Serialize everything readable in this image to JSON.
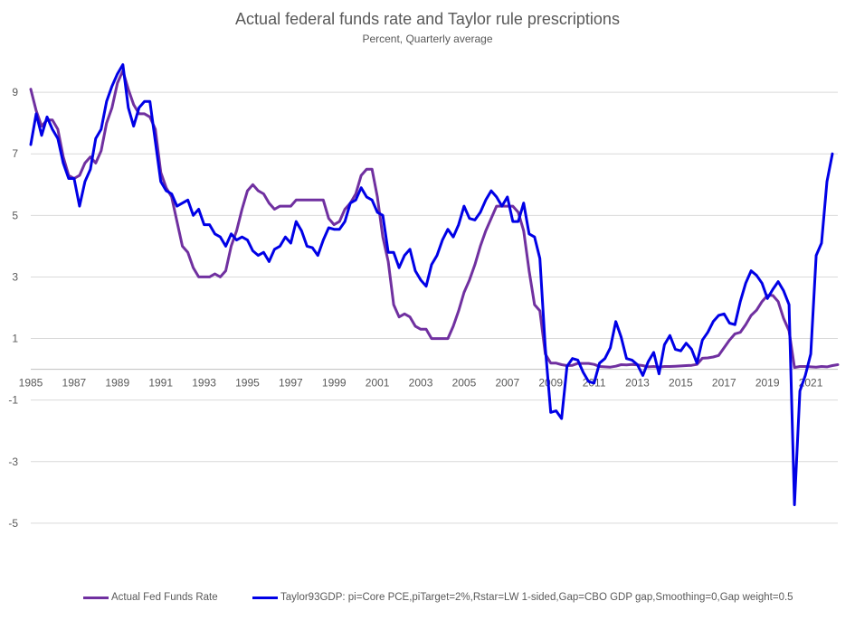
{
  "chart_data": {
    "type": "line",
    "title": "Actual federal funds rate and Taylor rule prescriptions",
    "subtitle": "Percent, Quarterly average",
    "xlabel": "",
    "ylabel": "",
    "xlim": [
      1985,
      2022.25
    ],
    "ylim": [
      -7,
      11
    ],
    "x_ticks": [
      "1985",
      "1987",
      "1989",
      "1991",
      "1993",
      "1995",
      "1997",
      "1999",
      "2001",
      "2003",
      "2005",
      "2007",
      "2009",
      "2011",
      "2013",
      "2015",
      "2017",
      "2019",
      "2021"
    ],
    "y_ticks": [
      "-5",
      "-3",
      "-1",
      "1",
      "3",
      "5",
      "7",
      "9"
    ],
    "grid": "horizontal",
    "legend_position": "bottom",
    "colors": {
      "actual": "#7030a0",
      "taylor": "#0000e6",
      "grid": "#d9d9d9"
    },
    "series": [
      {
        "name": "Actual Fed Funds Rate",
        "key": "actual",
        "points": [
          [
            1985.0,
            9.1
          ],
          [
            1985.25,
            8.4
          ],
          [
            1985.5,
            7.9
          ],
          [
            1985.75,
            8.1
          ],
          [
            1986.0,
            8.1
          ],
          [
            1986.25,
            7.8
          ],
          [
            1986.5,
            6.9
          ],
          [
            1986.75,
            6.3
          ],
          [
            1987.0,
            6.2
          ],
          [
            1987.25,
            6.3
          ],
          [
            1987.5,
            6.7
          ],
          [
            1987.75,
            6.9
          ],
          [
            1988.0,
            6.7
          ],
          [
            1988.25,
            7.1
          ],
          [
            1988.5,
            8.0
          ],
          [
            1988.75,
            8.5
          ],
          [
            1989.0,
            9.3
          ],
          [
            1989.25,
            9.7
          ],
          [
            1989.5,
            9.1
          ],
          [
            1989.75,
            8.6
          ],
          [
            1990.0,
            8.3
          ],
          [
            1990.25,
            8.3
          ],
          [
            1990.5,
            8.2
          ],
          [
            1990.75,
            7.8
          ],
          [
            1991.0,
            6.4
          ],
          [
            1991.25,
            5.9
          ],
          [
            1991.5,
            5.6
          ],
          [
            1991.75,
            4.8
          ],
          [
            1992.0,
            4.0
          ],
          [
            1992.25,
            3.8
          ],
          [
            1992.5,
            3.3
          ],
          [
            1992.75,
            3.0
          ],
          [
            1993.0,
            3.0
          ],
          [
            1993.25,
            3.0
          ],
          [
            1993.5,
            3.1
          ],
          [
            1993.75,
            3.0
          ],
          [
            1994.0,
            3.2
          ],
          [
            1994.25,
            4.0
          ],
          [
            1994.5,
            4.5
          ],
          [
            1994.75,
            5.2
          ],
          [
            1995.0,
            5.8
          ],
          [
            1995.25,
            6.0
          ],
          [
            1995.5,
            5.8
          ],
          [
            1995.75,
            5.7
          ],
          [
            1996.0,
            5.4
          ],
          [
            1996.25,
            5.2
          ],
          [
            1996.5,
            5.3
          ],
          [
            1996.75,
            5.3
          ],
          [
            1997.0,
            5.3
          ],
          [
            1997.25,
            5.5
          ],
          [
            1997.5,
            5.5
          ],
          [
            1997.75,
            5.5
          ],
          [
            1998.0,
            5.5
          ],
          [
            1998.25,
            5.5
          ],
          [
            1998.5,
            5.5
          ],
          [
            1998.75,
            4.9
          ],
          [
            1999.0,
            4.7
          ],
          [
            1999.25,
            4.8
          ],
          [
            1999.5,
            5.2
          ],
          [
            1999.75,
            5.4
          ],
          [
            2000.0,
            5.7
          ],
          [
            2000.25,
            6.3
          ],
          [
            2000.5,
            6.5
          ],
          [
            2000.75,
            6.5
          ],
          [
            2001.0,
            5.6
          ],
          [
            2001.25,
            4.3
          ],
          [
            2001.5,
            3.5
          ],
          [
            2001.75,
            2.1
          ],
          [
            2002.0,
            1.7
          ],
          [
            2002.25,
            1.8
          ],
          [
            2002.5,
            1.7
          ],
          [
            2002.75,
            1.4
          ],
          [
            2003.0,
            1.3
          ],
          [
            2003.25,
            1.3
          ],
          [
            2003.5,
            1.0
          ],
          [
            2003.75,
            1.0
          ],
          [
            2004.0,
            1.0
          ],
          [
            2004.25,
            1.0
          ],
          [
            2004.5,
            1.4
          ],
          [
            2004.75,
            1.9
          ],
          [
            2005.0,
            2.5
          ],
          [
            2005.25,
            2.9
          ],
          [
            2005.5,
            3.4
          ],
          [
            2005.75,
            4.0
          ],
          [
            2006.0,
            4.5
          ],
          [
            2006.25,
            4.9
          ],
          [
            2006.5,
            5.3
          ],
          [
            2006.75,
            5.3
          ],
          [
            2007.0,
            5.3
          ],
          [
            2007.25,
            5.3
          ],
          [
            2007.5,
            5.1
          ],
          [
            2007.75,
            4.5
          ],
          [
            2008.0,
            3.2
          ],
          [
            2008.25,
            2.1
          ],
          [
            2008.5,
            1.9
          ],
          [
            2008.75,
            0.5
          ],
          [
            2009.0,
            0.2
          ],
          [
            2009.25,
            0.2
          ],
          [
            2009.5,
            0.15
          ],
          [
            2009.75,
            0.12
          ],
          [
            2010.0,
            0.13
          ],
          [
            2010.25,
            0.19
          ],
          [
            2010.5,
            0.19
          ],
          [
            2010.75,
            0.19
          ],
          [
            2011.0,
            0.16
          ],
          [
            2011.25,
            0.09
          ],
          [
            2011.5,
            0.08
          ],
          [
            2011.75,
            0.07
          ],
          [
            2012.0,
            0.1
          ],
          [
            2012.25,
            0.15
          ],
          [
            2012.5,
            0.14
          ],
          [
            2012.75,
            0.16
          ],
          [
            2013.0,
            0.14
          ],
          [
            2013.25,
            0.12
          ],
          [
            2013.5,
            0.08
          ],
          [
            2013.75,
            0.09
          ],
          [
            2014.0,
            0.07
          ],
          [
            2014.25,
            0.09
          ],
          [
            2014.5,
            0.09
          ],
          [
            2014.75,
            0.1
          ],
          [
            2015.0,
            0.11
          ],
          [
            2015.25,
            0.12
          ],
          [
            2015.5,
            0.13
          ],
          [
            2015.75,
            0.16
          ],
          [
            2016.0,
            0.36
          ],
          [
            2016.25,
            0.37
          ],
          [
            2016.5,
            0.4
          ],
          [
            2016.75,
            0.45
          ],
          [
            2017.0,
            0.7
          ],
          [
            2017.25,
            0.95
          ],
          [
            2017.5,
            1.15
          ],
          [
            2017.75,
            1.2
          ],
          [
            2018.0,
            1.45
          ],
          [
            2018.25,
            1.75
          ],
          [
            2018.5,
            1.92
          ],
          [
            2018.75,
            2.2
          ],
          [
            2019.0,
            2.4
          ],
          [
            2019.25,
            2.4
          ],
          [
            2019.5,
            2.2
          ],
          [
            2019.75,
            1.65
          ],
          [
            2020.0,
            1.25
          ],
          [
            2020.25,
            0.06
          ],
          [
            2020.5,
            0.09
          ],
          [
            2020.75,
            0.09
          ],
          [
            2021.0,
            0.08
          ],
          [
            2021.25,
            0.07
          ],
          [
            2021.5,
            0.09
          ],
          [
            2021.75,
            0.08
          ],
          [
            2022.0,
            0.12
          ],
          [
            2022.25,
            0.15
          ]
        ]
      },
      {
        "name": "Taylor93GDP:  pi=Core PCE,piTarget=2%,Rstar=LW 1-sided,Gap=CBO GDP gap,Smoothing=0,Gap weight=0.5",
        "key": "taylor",
        "points": [
          [
            1985.0,
            7.3
          ],
          [
            1985.25,
            8.3
          ],
          [
            1985.5,
            7.6
          ],
          [
            1985.75,
            8.2
          ],
          [
            1986.0,
            7.8
          ],
          [
            1986.25,
            7.5
          ],
          [
            1986.5,
            6.7
          ],
          [
            1986.75,
            6.2
          ],
          [
            1987.0,
            6.2
          ],
          [
            1987.25,
            5.3
          ],
          [
            1987.5,
            6.1
          ],
          [
            1987.75,
            6.5
          ],
          [
            1988.0,
            7.5
          ],
          [
            1988.25,
            7.8
          ],
          [
            1988.5,
            8.7
          ],
          [
            1988.75,
            9.2
          ],
          [
            1989.0,
            9.6
          ],
          [
            1989.25,
            9.9
          ],
          [
            1989.5,
            8.5
          ],
          [
            1989.75,
            7.9
          ],
          [
            1990.0,
            8.5
          ],
          [
            1990.25,
            8.7
          ],
          [
            1990.5,
            8.7
          ],
          [
            1990.75,
            7.4
          ],
          [
            1991.0,
            6.1
          ],
          [
            1991.25,
            5.8
          ],
          [
            1991.5,
            5.7
          ],
          [
            1991.75,
            5.3
          ],
          [
            1992.0,
            5.4
          ],
          [
            1992.25,
            5.5
          ],
          [
            1992.5,
            5.0
          ],
          [
            1992.75,
            5.2
          ],
          [
            1993.0,
            4.7
          ],
          [
            1993.25,
            4.7
          ],
          [
            1993.5,
            4.4
          ],
          [
            1993.75,
            4.3
          ],
          [
            1994.0,
            4.0
          ],
          [
            1994.25,
            4.4
          ],
          [
            1994.5,
            4.2
          ],
          [
            1994.75,
            4.3
          ],
          [
            1995.0,
            4.2
          ],
          [
            1995.25,
            3.85
          ],
          [
            1995.5,
            3.7
          ],
          [
            1995.75,
            3.8
          ],
          [
            1996.0,
            3.5
          ],
          [
            1996.25,
            3.9
          ],
          [
            1996.5,
            4.0
          ],
          [
            1996.75,
            4.3
          ],
          [
            1997.0,
            4.1
          ],
          [
            1997.25,
            4.8
          ],
          [
            1997.5,
            4.5
          ],
          [
            1997.75,
            4.0
          ],
          [
            1998.0,
            3.95
          ],
          [
            1998.25,
            3.7
          ],
          [
            1998.5,
            4.2
          ],
          [
            1998.75,
            4.6
          ],
          [
            1999.0,
            4.55
          ],
          [
            1999.25,
            4.55
          ],
          [
            1999.5,
            4.8
          ],
          [
            1999.75,
            5.4
          ],
          [
            2000.0,
            5.5
          ],
          [
            2000.25,
            5.9
          ],
          [
            2000.5,
            5.6
          ],
          [
            2000.75,
            5.5
          ],
          [
            2001.0,
            5.1
          ],
          [
            2001.25,
            5.0
          ],
          [
            2001.5,
            3.8
          ],
          [
            2001.75,
            3.8
          ],
          [
            2002.0,
            3.3
          ],
          [
            2002.25,
            3.7
          ],
          [
            2002.5,
            3.9
          ],
          [
            2002.75,
            3.2
          ],
          [
            2003.0,
            2.9
          ],
          [
            2003.25,
            2.7
          ],
          [
            2003.5,
            3.4
          ],
          [
            2003.75,
            3.7
          ],
          [
            2004.0,
            4.2
          ],
          [
            2004.25,
            4.55
          ],
          [
            2004.5,
            4.3
          ],
          [
            2004.75,
            4.7
          ],
          [
            2005.0,
            5.3
          ],
          [
            2005.25,
            4.9
          ],
          [
            2005.5,
            4.85
          ],
          [
            2005.75,
            5.1
          ],
          [
            2006.0,
            5.5
          ],
          [
            2006.25,
            5.8
          ],
          [
            2006.5,
            5.6
          ],
          [
            2006.75,
            5.3
          ],
          [
            2007.0,
            5.6
          ],
          [
            2007.25,
            4.8
          ],
          [
            2007.5,
            4.8
          ],
          [
            2007.75,
            5.4
          ],
          [
            2008.0,
            4.4
          ],
          [
            2008.25,
            4.3
          ],
          [
            2008.5,
            3.6
          ],
          [
            2008.75,
            0.7
          ],
          [
            2009.0,
            -1.4
          ],
          [
            2009.25,
            -1.35
          ],
          [
            2009.5,
            -1.6
          ],
          [
            2009.75,
            0.1
          ],
          [
            2010.0,
            0.35
          ],
          [
            2010.25,
            0.3
          ],
          [
            2010.5,
            -0.1
          ],
          [
            2010.75,
            -0.4
          ],
          [
            2011.0,
            -0.45
          ],
          [
            2011.25,
            0.2
          ],
          [
            2011.5,
            0.35
          ],
          [
            2011.75,
            0.7
          ],
          [
            2012.0,
            1.55
          ],
          [
            2012.25,
            1.05
          ],
          [
            2012.5,
            0.35
          ],
          [
            2012.75,
            0.3
          ],
          [
            2013.0,
            0.15
          ],
          [
            2013.25,
            -0.2
          ],
          [
            2013.5,
            0.25
          ],
          [
            2013.75,
            0.55
          ],
          [
            2014.0,
            -0.15
          ],
          [
            2014.25,
            0.8
          ],
          [
            2014.5,
            1.1
          ],
          [
            2014.75,
            0.65
          ],
          [
            2015.0,
            0.6
          ],
          [
            2015.25,
            0.85
          ],
          [
            2015.5,
            0.65
          ],
          [
            2015.75,
            0.2
          ],
          [
            2016.0,
            0.95
          ],
          [
            2016.25,
            1.2
          ],
          [
            2016.5,
            1.55
          ],
          [
            2016.75,
            1.75
          ],
          [
            2017.0,
            1.8
          ],
          [
            2017.25,
            1.5
          ],
          [
            2017.5,
            1.45
          ],
          [
            2017.75,
            2.2
          ],
          [
            2018.0,
            2.8
          ],
          [
            2018.25,
            3.2
          ],
          [
            2018.5,
            3.05
          ],
          [
            2018.75,
            2.8
          ],
          [
            2019.0,
            2.3
          ],
          [
            2019.25,
            2.6
          ],
          [
            2019.5,
            2.85
          ],
          [
            2019.75,
            2.55
          ],
          [
            2020.0,
            2.1
          ],
          [
            2020.25,
            -4.4
          ],
          [
            2020.5,
            -0.7
          ],
          [
            2020.75,
            -0.2
          ],
          [
            2021.0,
            0.5
          ],
          [
            2021.25,
            3.7
          ],
          [
            2021.5,
            4.1
          ],
          [
            2021.75,
            6.1
          ],
          [
            2022.0,
            7.0
          ]
        ]
      }
    ]
  }
}
